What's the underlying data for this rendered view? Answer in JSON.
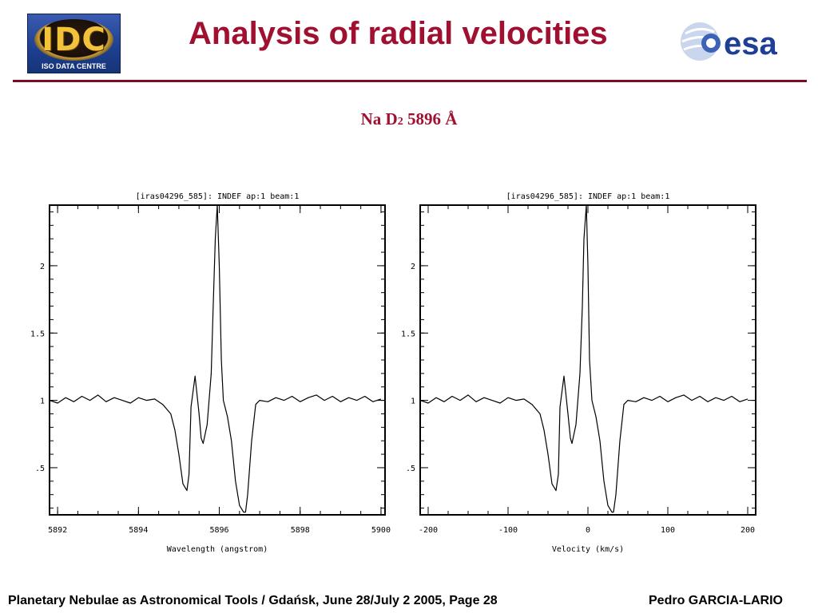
{
  "header": {
    "title": "Analysis of radial velocities",
    "logo_left_text": "IDC",
    "logo_left_subtext": "ISO DATA CENTRE",
    "logo_right_text": "esa"
  },
  "subtitle": {
    "line": "Na D",
    "subscript": "2",
    "rest": " 5896 Å"
  },
  "chart_data": [
    {
      "type": "line",
      "title": "[iras04296_585]:  INDEF ap:1 beam:1",
      "xlabel": "Wavelength (angstrom)",
      "ylabel": "",
      "xlim": [
        5891.8,
        5900.1
      ],
      "ylim": [
        0.15,
        2.45
      ],
      "x_ticks": [
        5892,
        5894,
        5896,
        5898,
        5900
      ],
      "y_ticks": [
        0.5,
        1,
        1.5,
        2
      ],
      "x_tick_labels": [
        "5892",
        "5894",
        "5896",
        "5898",
        "5900"
      ],
      "y_tick_labels": [
        ".5",
        "1",
        "1.5",
        "2"
      ],
      "series": [
        {
          "x": [
            5891.8,
            5892.0,
            5892.2,
            5892.4,
            5892.6,
            5892.8,
            5893.0,
            5893.2,
            5893.4,
            5893.6,
            5893.8,
            5894.0,
            5894.2,
            5894.4,
            5894.6,
            5894.8,
            5894.9,
            5895.0,
            5895.1,
            5895.2,
            5895.25,
            5895.3,
            5895.4,
            5895.5,
            5895.55,
            5895.6,
            5895.7,
            5895.8,
            5895.85,
            5895.9,
            5895.95,
            5896.0,
            5896.05,
            5896.1,
            5896.2,
            5896.3,
            5896.4,
            5896.5,
            5896.6,
            5896.65,
            5896.7,
            5896.8,
            5896.9,
            5897.0,
            5897.2,
            5897.4,
            5897.6,
            5897.8,
            5898.0,
            5898.2,
            5898.4,
            5898.6,
            5898.8,
            5899.0,
            5899.2,
            5899.4,
            5899.6,
            5899.8,
            5900.0
          ],
          "y": [
            1.0,
            0.98,
            1.02,
            0.99,
            1.03,
            1.0,
            1.04,
            0.99,
            1.02,
            1.0,
            0.98,
            1.02,
            1.0,
            1.01,
            0.97,
            0.9,
            0.78,
            0.6,
            0.38,
            0.33,
            0.45,
            0.95,
            1.18,
            0.9,
            0.72,
            0.68,
            0.82,
            1.2,
            1.7,
            2.2,
            2.45,
            2.0,
            1.3,
            1.0,
            0.88,
            0.7,
            0.4,
            0.22,
            0.17,
            0.17,
            0.3,
            0.7,
            0.97,
            1.0,
            0.99,
            1.02,
            1.0,
            1.03,
            0.99,
            1.02,
            1.04,
            1.0,
            1.03,
            0.99,
            1.02,
            1.0,
            1.03,
            0.99,
            1.01
          ]
        }
      ]
    },
    {
      "type": "line",
      "title": "[iras04296_585]:  INDEF ap:1 beam:1",
      "xlabel": "Velocity (km/s)",
      "ylabel": "",
      "xlim": [
        -210,
        210
      ],
      "ylim": [
        0.15,
        2.45
      ],
      "x_ticks": [
        -200,
        -100,
        0,
        100,
        200
      ],
      "y_ticks": [
        0.5,
        1,
        1.5,
        2
      ],
      "x_tick_labels": [
        "-200",
        "-100",
        "0",
        "100",
        "200"
      ],
      "y_tick_labels": [
        ".5",
        "1",
        "1.5",
        "2"
      ],
      "series": [
        {
          "x": [
            -210,
            -200,
            -190,
            -180,
            -170,
            -160,
            -150,
            -140,
            -130,
            -120,
            -110,
            -100,
            -90,
            -80,
            -70,
            -60,
            -55,
            -50,
            -45,
            -40,
            -37,
            -35,
            -30,
            -25,
            -22,
            -20,
            -15,
            -10,
            -7,
            -5,
            -2,
            0,
            2,
            5,
            10,
            15,
            20,
            25,
            30,
            32,
            35,
            40,
            45,
            50,
            60,
            70,
            80,
            90,
            100,
            110,
            120,
            130,
            140,
            150,
            160,
            170,
            180,
            190,
            200
          ],
          "y": [
            1.0,
            0.98,
            1.02,
            0.99,
            1.03,
            1.0,
            1.04,
            0.99,
            1.02,
            1.0,
            0.98,
            1.02,
            1.0,
            1.01,
            0.97,
            0.9,
            0.78,
            0.6,
            0.38,
            0.33,
            0.45,
            0.95,
            1.18,
            0.9,
            0.72,
            0.68,
            0.82,
            1.2,
            1.7,
            2.2,
            2.45,
            2.0,
            1.3,
            1.0,
            0.88,
            0.7,
            0.4,
            0.22,
            0.17,
            0.17,
            0.3,
            0.7,
            0.97,
            1.0,
            0.99,
            1.02,
            1.0,
            1.03,
            0.99,
            1.02,
            1.04,
            1.0,
            1.03,
            0.99,
            1.02,
            1.0,
            1.03,
            0.99,
            1.01
          ]
        }
      ]
    }
  ],
  "footer": {
    "left": "Planetary Nebulae as Astronomical Tools / Gdańsk, June 28/July 2 2005, Page 28",
    "right": "Pedro GARCIA-LARIO"
  }
}
